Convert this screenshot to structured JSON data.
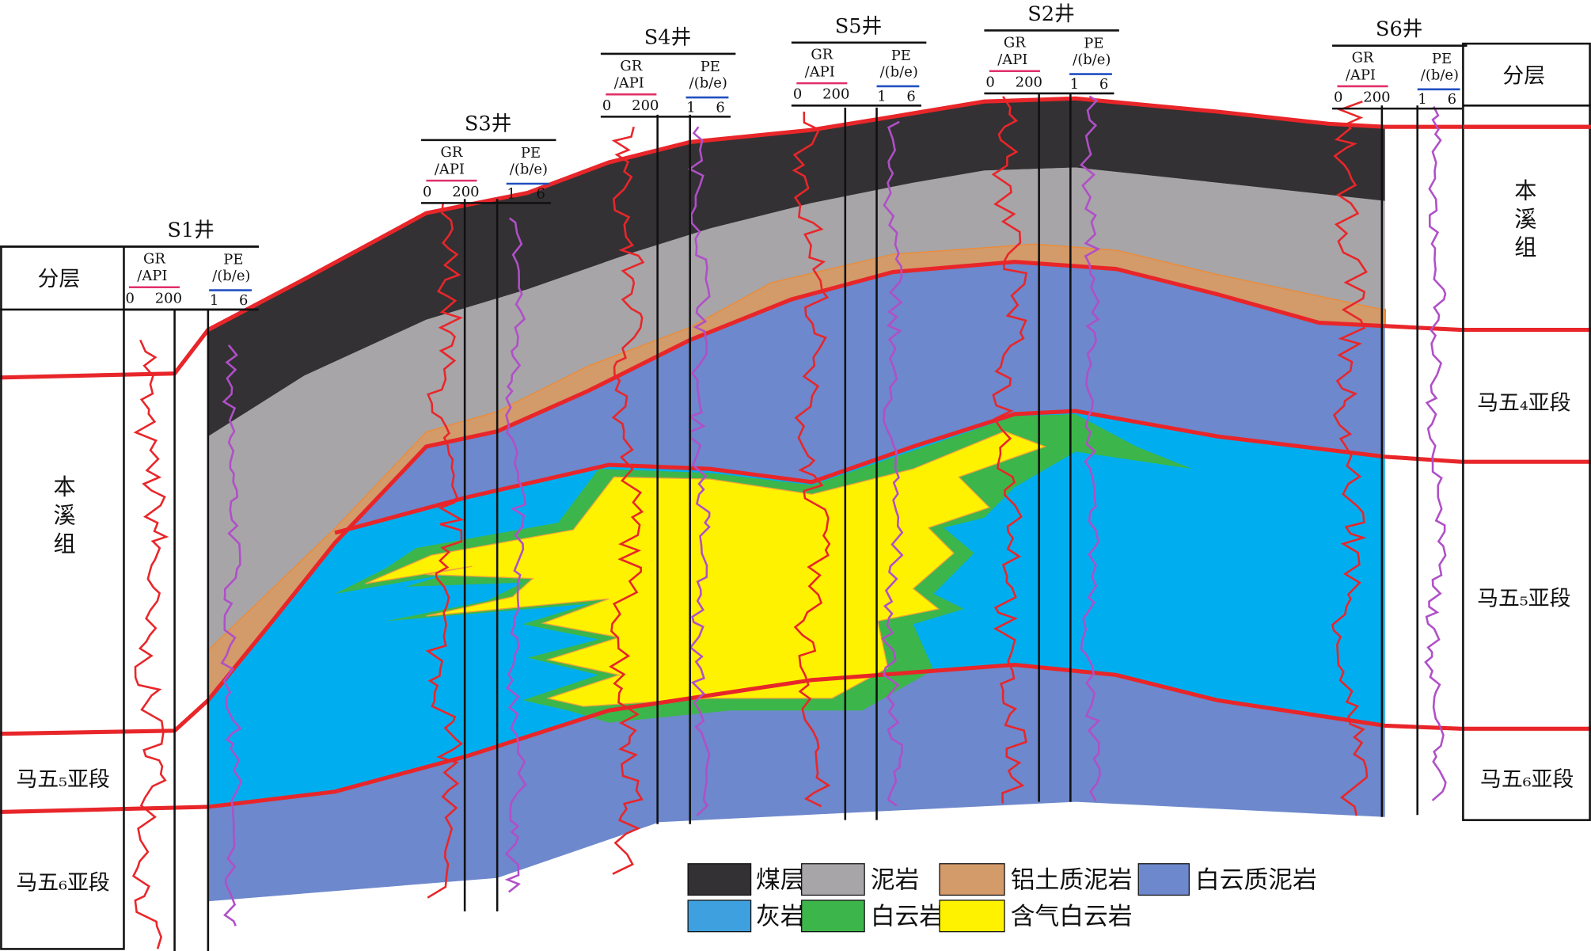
{
  "wells": [
    {
      "name": "S1井",
      "gr_label": "GR",
      "gr_unit": "/API",
      "gr_min": 0,
      "gr_max": 200,
      "pe_label": "PE",
      "pe_unit": "/(b/e)",
      "pe_min": 1,
      "pe_max": 6
    },
    {
      "name": "S3井",
      "gr_label": "GR",
      "gr_unit": "/API",
      "gr_min": 0,
      "gr_max": 200,
      "pe_label": "PE",
      "pe_unit": "/(b/e)",
      "pe_min": 1,
      "pe_max": 6
    },
    {
      "name": "S4井",
      "gr_label": "GR",
      "gr_unit": "/API",
      "gr_min": 0,
      "gr_max": 200,
      "pe_label": "PE",
      "pe_unit": "/(b/e)",
      "pe_min": 1,
      "pe_max": 6
    },
    {
      "name": "S5井",
      "gr_label": "GR",
      "gr_unit": "/API",
      "gr_min": 0,
      "gr_max": 200,
      "pe_label": "PE",
      "pe_unit": "/(b/e)",
      "pe_min": 1,
      "pe_max": 6
    },
    {
      "name": "S2井",
      "gr_label": "GR",
      "gr_unit": "/API",
      "gr_min": 0,
      "gr_max": 200,
      "pe_label": "PE",
      "pe_unit": "/(b/e)",
      "pe_min": 1,
      "pe_max": 6
    },
    {
      "name": "S6井",
      "gr_label": "GR",
      "gr_unit": "/API",
      "gr_min": 0,
      "gr_max": 200,
      "pe_label": "PE",
      "pe_unit": "/(b/e)",
      "pe_min": 1,
      "pe_max": 6
    }
  ],
  "left_column": {
    "header": "分层",
    "layers": [
      "本溪组",
      "马五₅亚段",
      "马五₆亚段"
    ]
  },
  "right_column": {
    "header": "分层",
    "layers": [
      "本溪组",
      "马五₄亚段",
      "马五₅亚段",
      "马五₆亚段"
    ]
  },
  "legend": [
    "煤层",
    "泥岩",
    "铝土质泥岩",
    "白云质泥岩",
    "灰岩",
    "白云岩",
    "含气白云岩"
  ]
}
